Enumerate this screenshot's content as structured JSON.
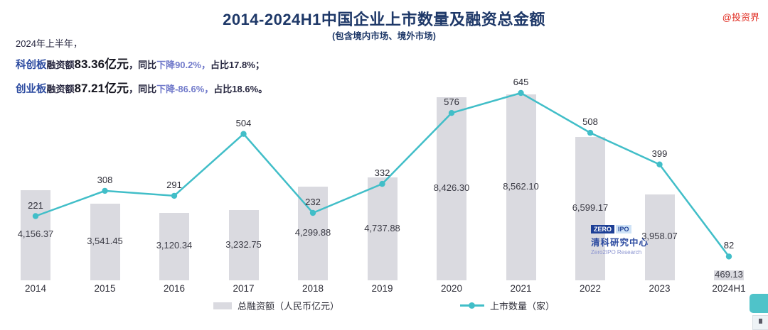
{
  "title": "2014-2024H1中国企业上市数量及融资总金额",
  "subtitle": "(包含境内市场、境外市场)",
  "watermark": "@投资界",
  "annotation": {
    "line1": "2024年上半年，",
    "line2": [
      {
        "t": "科创板",
        "c": "board"
      },
      {
        "t": "融资额",
        "c": "plain"
      },
      {
        "t": "83.36亿元",
        "c": "amount"
      },
      {
        "t": "，同比",
        "c": "plain"
      },
      {
        "t": "下降90.2%，",
        "c": "soft"
      },
      {
        "t": "占比17.8%；",
        "c": "plain"
      }
    ],
    "line3": [
      {
        "t": "创业板",
        "c": "board"
      },
      {
        "t": "融资额",
        "c": "plain"
      },
      {
        "t": "87.21亿元",
        "c": "amount"
      },
      {
        "t": "，同比",
        "c": "plain"
      },
      {
        "t": "下降-86.6%，",
        "c": "soft"
      },
      {
        "t": "占比18.6%。",
        "c": "plain"
      }
    ]
  },
  "legend": [
    {
      "type": "bar",
      "label": "总融资额（人民币亿元）"
    },
    {
      "type": "line",
      "label": "上市数量（家）"
    }
  ],
  "logo": {
    "zero": "ZERO",
    "ipo": "IPO",
    "cn": "清科研究中心",
    "en": "Zero2IPO Research"
  },
  "colors": {
    "bar": "#dadae0",
    "line": "#41bec8",
    "title": "#1e3868",
    "board_blue": "#2b4aa0",
    "soft_blue": "#7079ca",
    "watermark_red": "#e02b20",
    "corner_teal": "#4fc3c9"
  },
  "chart_data": {
    "type": "bar+line",
    "title": "2014-2024H1中国企业上市数量及融资总金额",
    "subtitle": "(包含境内市场、境外市场)",
    "categories": [
      "2014",
      "2015",
      "2016",
      "2017",
      "2018",
      "2019",
      "2020",
      "2021",
      "2022",
      "2023",
      "2024H1"
    ],
    "series": [
      {
        "name": "总融资额（人民币亿元）",
        "type": "bar",
        "values": [
          4156.37,
          3541.45,
          3120.34,
          3232.75,
          4299.88,
          4737.88,
          8426.3,
          8562.1,
          6599.17,
          3958.07,
          469.13
        ],
        "labels": [
          "4,156.37",
          "3,541.45",
          "3,120.34",
          "3,232.75",
          "4,299.88",
          "4,737.88",
          "8,426.30",
          "8,562.10",
          "6,599.17",
          "3,958.07",
          "469.13"
        ]
      },
      {
        "name": "上市数量（家）",
        "type": "line",
        "values": [
          221,
          308,
          291,
          504,
          232,
          332,
          576,
          645,
          508,
          399,
          82
        ],
        "labels": [
          "221",
          "308",
          "291",
          "504",
          "232",
          "332",
          "576",
          "645",
          "508",
          "399",
          "82"
        ]
      }
    ],
    "bar_axis_max": 8562.1,
    "line_axis_max": 645,
    "grid": false,
    "legend_position": "bottom",
    "value_labels_visible": true
  }
}
